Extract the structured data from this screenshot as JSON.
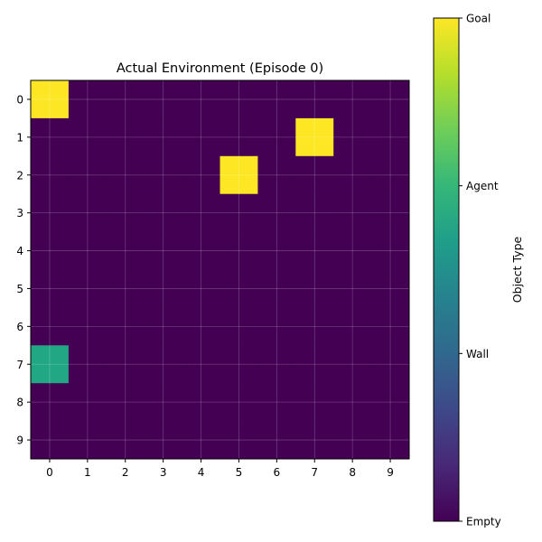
{
  "chart_data": {
    "type": "heatmap",
    "title": "Actual Environment (Episode 0)",
    "xlabel": "",
    "ylabel": "",
    "x_ticks": [
      "0",
      "1",
      "2",
      "3",
      "4",
      "5",
      "6",
      "7",
      "8",
      "9"
    ],
    "y_ticks": [
      "0",
      "1",
      "2",
      "3",
      "4",
      "5",
      "6",
      "7",
      "8",
      "9"
    ],
    "grid": true,
    "colormap": "viridis",
    "value_range": [
      0,
      3
    ],
    "grid_values": [
      [
        3,
        0,
        0,
        0,
        0,
        0,
        0,
        0,
        0,
        0
      ],
      [
        0,
        0,
        0,
        0,
        0,
        0,
        0,
        3,
        0,
        0
      ],
      [
        0,
        0,
        0,
        0,
        0,
        3,
        0,
        0,
        0,
        0
      ],
      [
        0,
        0,
        0,
        0,
        0,
        0,
        0,
        0,
        0,
        0
      ],
      [
        0,
        0,
        0,
        0,
        0,
        0,
        0,
        0,
        0,
        0
      ],
      [
        0,
        0,
        0,
        0,
        0,
        0,
        0,
        0,
        0,
        0
      ],
      [
        0,
        0,
        0,
        0,
        0,
        0,
        0,
        0,
        0,
        0
      ],
      [
        2,
        0,
        0,
        0,
        0,
        0,
        0,
        0,
        0,
        0
      ],
      [
        0,
        0,
        0,
        0,
        0,
        0,
        0,
        0,
        0,
        0
      ],
      [
        0,
        0,
        0,
        0,
        0,
        0,
        0,
        0,
        0,
        0
      ]
    ],
    "colorbar": {
      "label": "Object Type",
      "ticks": [
        {
          "value": 0,
          "label": "Empty"
        },
        {
          "value": 1,
          "label": "Wall"
        },
        {
          "value": 2,
          "label": "Agent"
        },
        {
          "value": 3,
          "label": "Goal"
        }
      ],
      "colors": {
        "0": "#440154",
        "2": "#21a784",
        "3": "#fde725"
      }
    }
  }
}
